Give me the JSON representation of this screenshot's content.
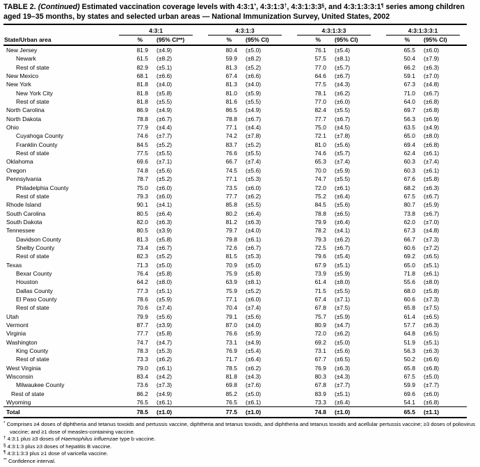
{
  "title": {
    "table_label": "TABLE 2.",
    "continued": "(Continued)",
    "seg1": "Estimated vaccination coverage levels with 4:3:1",
    "sup1": "*",
    "seg2": ", 4:3:1:3",
    "sup2": "†",
    "seg3": ", 4:3:1:3:3",
    "sup3": "§",
    "seg4": ", and 4:3:1:3:3:1",
    "sup4": "¶",
    "seg5": " series among children aged 19–35 months, by states and selected urban areas — National Immunization Survey, United States, 2002"
  },
  "table": {
    "row_header": "State/Urban area",
    "groups": [
      {
        "label": "4:3:1",
        "pct_header": "%",
        "ci_header": "(95% CI**)"
      },
      {
        "label": "4:3:1:3",
        "pct_header": "%",
        "ci_header": "(95% CI)"
      },
      {
        "label": "4:3:1:3:3",
        "pct_header": "%",
        "ci_header": "(95% CI)"
      },
      {
        "label": "4:3:1:3:3:1",
        "pct_header": "%",
        "ci_header": "(95% CI)"
      }
    ],
    "rows": [
      {
        "area": "New Jersey",
        "indent": 0,
        "values": [
          "81.9",
          "(±4.9)",
          "80.4",
          "(±5.0)",
          "76.1",
          "(±5.4)",
          "65.5",
          "(±6.0)"
        ]
      },
      {
        "area": "Newark",
        "indent": 1,
        "values": [
          "61.5",
          "(±8.2)",
          "59.9",
          "(±8.2)",
          "57.5",
          "(±8.1)",
          "50.4",
          "(±7.9)"
        ]
      },
      {
        "area": "Rest of state",
        "indent": 1,
        "values": [
          "82.9",
          "(±5.1)",
          "81.3",
          "(±5.2)",
          "77.0",
          "(±5.7)",
          "66.2",
          "(±6.3)"
        ]
      },
      {
        "area": "New Mexico",
        "indent": 0,
        "values": [
          "68.1",
          "(±6.6)",
          "67.4",
          "(±6.6)",
          "64.6",
          "(±6.7)",
          "59.1",
          "(±7.0)"
        ]
      },
      {
        "area": "New York",
        "indent": 0,
        "values": [
          "81.8",
          "(±4.0)",
          "81.3",
          "(±4.0)",
          "77.5",
          "(±4.3)",
          "67.3",
          "(±4.8)"
        ]
      },
      {
        "area": "New York City",
        "indent": 1,
        "values": [
          "81.8",
          "(±5.8)",
          "81.0",
          "(±5.9)",
          "78.1",
          "(±6.2)",
          "71.0",
          "(±6.7)"
        ]
      },
      {
        "area": "Rest of state",
        "indent": 1,
        "values": [
          "81.8",
          "(±5.5)",
          "81.6",
          "(±5.5)",
          "77.0",
          "(±6.0)",
          "64.0",
          "(±6.8)"
        ]
      },
      {
        "area": "North Carolina",
        "indent": 0,
        "values": [
          "86.9",
          "(±4.9)",
          "86.5",
          "(±4.9)",
          "82.4",
          "(±5.5)",
          "69.7",
          "(±6.8)"
        ]
      },
      {
        "area": "North Dakota",
        "indent": 0,
        "values": [
          "78.8",
          "(±6.7)",
          "78.8",
          "(±6.7)",
          "77.7",
          "(±6.7)",
          "56.3",
          "(±6.9)"
        ]
      },
      {
        "area": "Ohio",
        "indent": 0,
        "values": [
          "77.9",
          "(±4.4)",
          "77.1",
          "(±4.4)",
          "75.0",
          "(±4.5)",
          "63.5",
          "(±4.9)"
        ]
      },
      {
        "area": "Cuyahoga County",
        "indent": 1,
        "values": [
          "74.6",
          "(±7.7)",
          "74.2",
          "(±7.8)",
          "72.1",
          "(±7.8)",
          "65.0",
          "(±8.0)"
        ]
      },
      {
        "area": "Franklin County",
        "indent": 1,
        "values": [
          "84.5",
          "(±5.2)",
          "83.7",
          "(±5.2)",
          "81.0",
          "(±5.6)",
          "69.4",
          "(±6.8)"
        ]
      },
      {
        "area": "Rest of state",
        "indent": 1,
        "values": [
          "77.5",
          "(±5.5)",
          "76.6",
          "(±5.5)",
          "74.6",
          "(±5.7)",
          "62.4",
          "(±6.1)"
        ]
      },
      {
        "area": "Oklahoma",
        "indent": 0,
        "values": [
          "69.6",
          "(±7.1)",
          "66.7",
          "(±7.4)",
          "65.3",
          "(±7.4)",
          "60.3",
          "(±7.4)"
        ]
      },
      {
        "area": "Oregon",
        "indent": 0,
        "values": [
          "74.8",
          "(±5.6)",
          "74.5",
          "(±5.6)",
          "70.0",
          "(±5.9)",
          "60.3",
          "(±6.1)"
        ]
      },
      {
        "area": "Pennsylvania",
        "indent": 0,
        "values": [
          "78.7",
          "(±5.2)",
          "77.1",
          "(±5.3)",
          "74.7",
          "(±5.5)",
          "67.6",
          "(±5.8)"
        ]
      },
      {
        "area": "Philadelphia County",
        "indent": 1,
        "values": [
          "75.0",
          "(±6.0)",
          "73.5",
          "(±6.0)",
          "72.0",
          "(±6.1)",
          "68.2",
          "(±6.3)"
        ]
      },
      {
        "area": "Rest of state",
        "indent": 1,
        "values": [
          "79.3",
          "(±6.0)",
          "77.7",
          "(±6.2)",
          "75.2",
          "(±6.4)",
          "67.5",
          "(±6.7)"
        ]
      },
      {
        "area": "Rhode Island",
        "indent": 0,
        "values": [
          "90.1",
          "(±4.1)",
          "85.8",
          "(±5.5)",
          "84.5",
          "(±5.6)",
          "80.7",
          "(±5.9)"
        ]
      },
      {
        "area": "South Carolina",
        "indent": 0,
        "values": [
          "80.5",
          "(±6.4)",
          "80.2",
          "(±6.4)",
          "78.8",
          "(±6.5)",
          "73.8",
          "(±6.7)"
        ]
      },
      {
        "area": "South Dakota",
        "indent": 0,
        "values": [
          "82.0",
          "(±6.3)",
          "81.2",
          "(±6.3)",
          "79.9",
          "(±6.4)",
          "62.0",
          "(±7.0)"
        ]
      },
      {
        "area": "Tennessee",
        "indent": 0,
        "values": [
          "80.5",
          "(±3.9)",
          "79.7",
          "(±4.0)",
          "78.2",
          "(±4.1)",
          "67.3",
          "(±4.8)"
        ]
      },
      {
        "area": "Davidson County",
        "indent": 1,
        "values": [
          "81.3",
          "(±5.8)",
          "79.8",
          "(±6.1)",
          "79.3",
          "(±6.2)",
          "66.7",
          "(±7.3)"
        ]
      },
      {
        "area": "Shelby County",
        "indent": 1,
        "values": [
          "73.4",
          "(±6.7)",
          "72.6",
          "(±6.7)",
          "72.5",
          "(±6.7)",
          "60.6",
          "(±7.2)"
        ]
      },
      {
        "area": "Rest of state",
        "indent": 1,
        "values": [
          "82.3",
          "(±5.2)",
          "81.5",
          "(±5.3)",
          "79.6",
          "(±5.4)",
          "69.2",
          "(±6.5)"
        ]
      },
      {
        "area": "Texas",
        "indent": 0,
        "values": [
          "71.3",
          "(±5.0)",
          "70.9",
          "(±5.0)",
          "67.9",
          "(±5.1)",
          "65.0",
          "(±5.1)"
        ]
      },
      {
        "area": "Bexar County",
        "indent": 1,
        "values": [
          "76.4",
          "(±5.8)",
          "75.9",
          "(±5.8)",
          "73.9",
          "(±5.9)",
          "71.8",
          "(±6.1)"
        ]
      },
      {
        "area": "Houston",
        "indent": 1,
        "values": [
          "64.2",
          "(±8.0)",
          "63.9",
          "(±8.1)",
          "61.4",
          "(±8.0)",
          "55.6",
          "(±8.0)"
        ]
      },
      {
        "area": "Dallas County",
        "indent": 1,
        "values": [
          "77.3",
          "(±5.1)",
          "75.9",
          "(±5.2)",
          "71.5",
          "(±5.5)",
          "68.0",
          "(±5.8)"
        ]
      },
      {
        "area": "El Paso County",
        "indent": 1,
        "values": [
          "78.6",
          "(±5.9)",
          "77.1",
          "(±6.0)",
          "67.4",
          "(±7.1)",
          "60.6",
          "(±7.3)"
        ]
      },
      {
        "area": "Rest of state",
        "indent": 1,
        "values": [
          "70.6",
          "(±7.4)",
          "70.4",
          "(±7.4)",
          "67.8",
          "(±7.5)",
          "65.8",
          "(±7.5)"
        ]
      },
      {
        "area": "Utah",
        "indent": 0,
        "values": [
          "79.9",
          "(±5.6)",
          "79.1",
          "(±5.6)",
          "75.7",
          "(±5.9)",
          "61.4",
          "(±6.5)"
        ]
      },
      {
        "area": "Vermont",
        "indent": 0,
        "values": [
          "87.7",
          "(±3.9)",
          "87.0",
          "(±4.0)",
          "80.9",
          "(±4.7)",
          "57.7",
          "(±6.3)"
        ]
      },
      {
        "area": "Virginia",
        "indent": 0,
        "values": [
          "77.7",
          "(±5.8)",
          "76.6",
          "(±5.9)",
          "72.0",
          "(±6.2)",
          "64.8",
          "(±6.5)"
        ]
      },
      {
        "area": "Washington",
        "indent": 0,
        "values": [
          "74.7",
          "(±4.7)",
          "73.1",
          "(±4.9)",
          "69.2",
          "(±5.0)",
          "51.9",
          "(±5.1)"
        ]
      },
      {
        "area": "King County",
        "indent": 1,
        "values": [
          "78.3",
          "(±5.3)",
          "76.9",
          "(±5.4)",
          "73.1",
          "(±5.6)",
          "56.3",
          "(±6.3)"
        ]
      },
      {
        "area": "Rest of state",
        "indent": 1,
        "values": [
          "73.3",
          "(±6.2)",
          "71.7",
          "(±6.4)",
          "67.7",
          "(±6.5)",
          "50.2",
          "(±6.6)"
        ]
      },
      {
        "area": "West Virginia",
        "indent": 0,
        "values": [
          "79.0",
          "(±6.1)",
          "78.5",
          "(±6.2)",
          "76.9",
          "(±6.3)",
          "65.8",
          "(±6.8)"
        ]
      },
      {
        "area": "Wisconsin",
        "indent": 0,
        "values": [
          "83.4",
          "(±4.2)",
          "81.8",
          "(±4.3)",
          "80.3",
          "(±4.3)",
          "67.5",
          "(±5.0)"
        ]
      },
      {
        "area": "Milwaukee County",
        "indent": 1,
        "values": [
          "73.6",
          "(±7.3)",
          "69.8",
          "(±7.6)",
          "67.8",
          "(±7.7)",
          "59.9",
          "(±7.7)"
        ]
      },
      {
        "area": "Rest of state",
        "indent": 0.5,
        "values": [
          "86.2",
          "(±4.9)",
          "85.2",
          "(±5.0)",
          "83.9",
          "(±5.1)",
          "69.6",
          "(±6.0)"
        ]
      },
      {
        "area": "Wyoming",
        "indent": 0,
        "values": [
          "76.5",
          "(±6.1)",
          "76.5",
          "(±6.1)",
          "73.3",
          "(±6.4)",
          "54.1",
          "(±6.8)"
        ]
      }
    ],
    "total": {
      "area": "Total",
      "values": [
        "78.5",
        "(±1.0)",
        "77.5",
        "(±1.0)",
        "74.8",
        "(±1.0)",
        "65.5",
        "(±1.1)"
      ]
    }
  },
  "footnotes": [
    {
      "marker": "*",
      "text": "Comprises ≥4 doses of diphtheria and tetanus toxoids and pertussis vaccine, diphtheria and tetanus toxoids, and diphtheria and tetanus toxoids and acellular pertussis vaccine; ≥3 doses of poliovirus vaccine; and ≥1 dose of measles-containing vaccine."
    },
    {
      "marker": "†",
      "pre": "4:3:1 plus ≥3 doses of ",
      "italic": "Haemophilus influenzae",
      "post": " type b vaccine."
    },
    {
      "marker": "§",
      "text": "4:3:1:3 plus ≥3 doses of hepatitis B vaccine."
    },
    {
      "marker": "¶",
      "text": "4:3:1:3:3 plus ≥1 dose of varicella vaccine."
    },
    {
      "marker": "**",
      "text": "Confidence interval."
    }
  ]
}
